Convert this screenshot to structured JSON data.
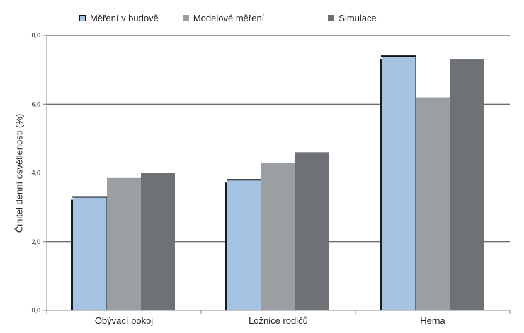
{
  "chart_data": {
    "type": "bar",
    "categories": [
      "Obývací pokoj",
      "Ložnice rodičů",
      "Herna"
    ],
    "series": [
      {
        "name": "Měření v budově",
        "values": [
          3.3,
          3.8,
          7.4
        ],
        "color": "#a6c3e3"
      },
      {
        "name": "Modelové měření",
        "values": [
          3.85,
          4.3,
          6.2
        ],
        "color": "#9b9fa3"
      },
      {
        "name": "Simulace",
        "values": [
          4.0,
          4.6,
          7.3
        ],
        "color": "#6e7277"
      }
    ],
    "ylabel": "Činitel denní osvětlenosti (%)",
    "ylim": [
      0,
      8
    ],
    "yticks": [
      "0,0",
      "2,0",
      "4,0",
      "6,0",
      "8,0"
    ],
    "grid": true,
    "legend": "top"
  }
}
